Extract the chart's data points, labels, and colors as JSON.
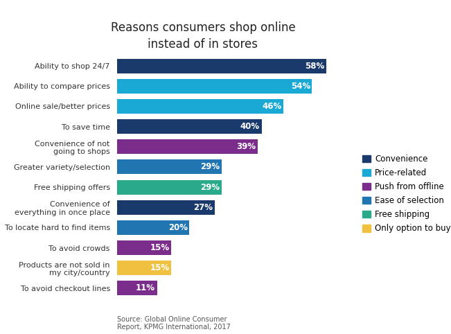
{
  "title": "Reasons consumers shop online\ninstead of in stores",
  "categories": [
    "To avoid checkout lines",
    "Products are not sold in\nmy city/country",
    "To avoid crowds",
    "To locate hard to find items",
    "Convenience of\neverything in once place",
    "Free shipping offers",
    "Greater variety/selection",
    "Convenience of not\ngoing to shops",
    "To save time",
    "Online sale/better prices",
    "Ability to compare prices",
    "Ability to shop 24/7"
  ],
  "values": [
    11,
    15,
    15,
    20,
    27,
    29,
    29,
    39,
    40,
    46,
    54,
    58
  ],
  "colors": [
    "#7b2d8b",
    "#f0c040",
    "#7b2d8b",
    "#2175b0",
    "#1a3a6b",
    "#2aaa8a",
    "#2175b0",
    "#7b2d8b",
    "#1a3a6b",
    "#1aa8d4",
    "#1aa8d4",
    "#1a3a6b"
  ],
  "legend_items": [
    {
      "label": "Convenience",
      "color": "#1a3a6b"
    },
    {
      "label": "Price-related",
      "color": "#1aa8d4"
    },
    {
      "label": "Push from offline",
      "color": "#7b2d8b"
    },
    {
      "label": "Ease of selection",
      "color": "#2175b0"
    },
    {
      "label": "Free shipping",
      "color": "#2aaa8a"
    },
    {
      "label": "Only option to buy",
      "color": "#f0c040"
    }
  ],
  "source": "Source: Global Online Consumer\nReport, KPMG International, 2017",
  "xlim": [
    0,
    65
  ],
  "background_color": "#ffffff"
}
